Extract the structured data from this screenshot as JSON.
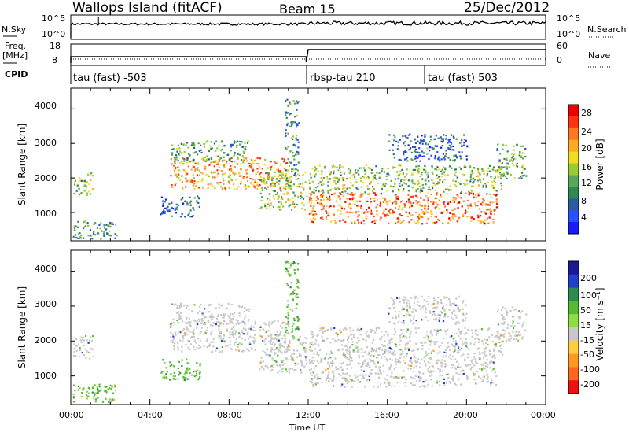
{
  "header": {
    "station": "Wallops Island (fitACF)",
    "beam": "Beam 15",
    "date": "25/Dec/2012"
  },
  "ctrl": {
    "nsky_label": "N.Sky",
    "nsky_ticks": [
      "10^5",
      "10^0"
    ],
    "nsearch_label": "N.Search",
    "nsearch_ticks": [
      "10^5",
      "10^0"
    ],
    "freq_label": "Freq.",
    "freq_unit": "[MHz]",
    "freq_ticks": [
      "18",
      "8"
    ],
    "nave_label": "Nave",
    "nave_ticks": [
      "60",
      "0"
    ],
    "cpid_label": "CPID",
    "cpid_segments": [
      "tau (fast) -503",
      "rbsp-tau 210",
      "tau (fast) 503"
    ]
  },
  "chart_data": [
    {
      "type": "heatmap",
      "title": "",
      "xlabel": "Time UT",
      "ylabel": "Slant Range [km]",
      "x_range_hours": [
        0,
        24
      ],
      "xticks": [
        "00:00",
        "04:00",
        "08:00",
        "12:00",
        "16:00",
        "20:00",
        "00:00"
      ],
      "ylim": [
        180,
        4600
      ],
      "yticks": [
        1000,
        2000,
        3000,
        4000
      ],
      "colorbar_label": "Power [dB]",
      "colorbar_ticks": [
        "4",
        "8",
        "12",
        "16",
        "20",
        "24",
        "28"
      ],
      "color_scale": [
        "#1a1aff",
        "#2850ff",
        "#2a5c9e",
        "#2e8a4e",
        "#58a85a",
        "#99cc33",
        "#eedd22",
        "#ffaa22",
        "#ff7722",
        "#ff3311",
        "#ee0000"
      ],
      "echo_regions": [
        {
          "t0": 0.1,
          "t1": 2.3,
          "r0": 250,
          "r1": 800,
          "level": 0.3
        },
        {
          "t0": 0.1,
          "t1": 1.1,
          "r0": 1500,
          "r1": 2200,
          "level": 0.45
        },
        {
          "t0": 4.5,
          "t1": 6.5,
          "r0": 900,
          "r1": 1500,
          "level": 0.2
        },
        {
          "t0": 5.0,
          "t1": 11.0,
          "r0": 1700,
          "r1": 2600,
          "level": 0.7
        },
        {
          "t0": 5.0,
          "t1": 9.0,
          "r0": 2500,
          "r1": 3100,
          "level": 0.35
        },
        {
          "t0": 9.5,
          "t1": 12.0,
          "r0": 1100,
          "r1": 2200,
          "level": 0.5
        },
        {
          "t0": 10.8,
          "t1": 11.5,
          "r0": 2000,
          "r1": 4300,
          "level": 0.3
        },
        {
          "t0": 12.0,
          "t1": 21.5,
          "r0": 700,
          "r1": 1600,
          "level": 0.82
        },
        {
          "t0": 12.0,
          "t1": 21.8,
          "r0": 1600,
          "r1": 2400,
          "level": 0.45
        },
        {
          "t0": 16.0,
          "t1": 20.0,
          "r0": 2500,
          "r1": 3300,
          "level": 0.2
        },
        {
          "t0": 21.5,
          "t1": 23.0,
          "r0": 2000,
          "r1": 3000,
          "level": 0.4
        }
      ]
    },
    {
      "type": "heatmap",
      "title": "",
      "xlabel": "Time UT",
      "ylabel": "Slant Range [km]",
      "x_range_hours": [
        0,
        24
      ],
      "xticks": [
        "00:00",
        "04:00",
        "08:00",
        "12:00",
        "16:00",
        "20:00",
        "00:00"
      ],
      "ylim": [
        180,
        4600
      ],
      "yticks": [
        1000,
        2000,
        3000,
        4000
      ],
      "colorbar_label": "Velocity [m s⁻¹]",
      "colorbar_ticks": [
        "200",
        "100",
        "50",
        "15",
        "-15",
        "-50",
        "-100",
        "-200"
      ],
      "color_scale": [
        "#1a1a99",
        "#2040cc",
        "#2e8a4e",
        "#55bb33",
        "#8fdd44",
        "#c8c8c8",
        "#ffcc44",
        "#ff9922",
        "#ff6622",
        "#ee1111"
      ],
      "echo_regions": [
        {
          "t0": 0.1,
          "t1": 2.3,
          "r0": 250,
          "r1": 800,
          "kind": "green"
        },
        {
          "t0": 0.1,
          "t1": 1.1,
          "r0": 1500,
          "r1": 2200,
          "kind": "grey"
        },
        {
          "t0": 4.5,
          "t1": 6.5,
          "r0": 900,
          "r1": 1500,
          "kind": "green"
        },
        {
          "t0": 5.0,
          "t1": 11.0,
          "r0": 1700,
          "r1": 2600,
          "kind": "grey"
        },
        {
          "t0": 5.0,
          "t1": 9.0,
          "r0": 2500,
          "r1": 3100,
          "kind": "grey"
        },
        {
          "t0": 9.5,
          "t1": 12.0,
          "r0": 1100,
          "r1": 2200,
          "kind": "grey"
        },
        {
          "t0": 10.8,
          "t1": 11.5,
          "r0": 2000,
          "r1": 4300,
          "kind": "green"
        },
        {
          "t0": 12.0,
          "t1": 21.5,
          "r0": 700,
          "r1": 1600,
          "kind": "grey"
        },
        {
          "t0": 12.0,
          "t1": 21.8,
          "r0": 1600,
          "r1": 2400,
          "kind": "grey"
        },
        {
          "t0": 16.0,
          "t1": 20.0,
          "r0": 2500,
          "r1": 3300,
          "kind": "grey"
        },
        {
          "t0": 21.5,
          "t1": 23.0,
          "r0": 2000,
          "r1": 3000,
          "kind": "grey"
        }
      ]
    }
  ]
}
